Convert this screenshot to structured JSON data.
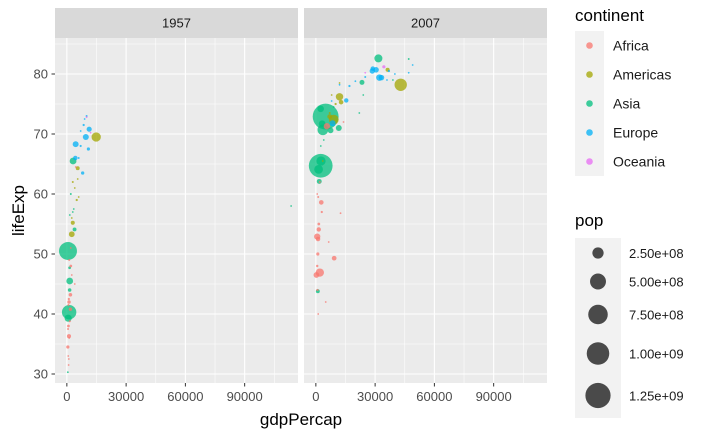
{
  "chart_data": {
    "type": "scatter",
    "facets": [
      "1957",
      "2007"
    ],
    "xlabel": "gdpPercap",
    "ylabel": "lifeExp",
    "xlim": [
      -6000,
      117000
    ],
    "ylim": [
      28.5,
      86
    ],
    "xticks": [
      0,
      30000,
      60000,
      90000
    ],
    "xtick_labels": [
      "0",
      "30000",
      "60000",
      "90000"
    ],
    "yticks": [
      30,
      40,
      50,
      60,
      70,
      80
    ],
    "ytick_labels": [
      "30",
      "40",
      "50",
      "60",
      "70",
      "80"
    ],
    "grid": true,
    "colors": {
      "Africa": "#F8766D",
      "Americas": "#A3A500",
      "Asia": "#00BF7D",
      "Europe": "#00B0F6",
      "Oceania": "#E76BF3",
      "panel_bg": "#EBEBEB",
      "strip_bg": "#D9D9D9",
      "legend_key_bg": "#F2F2F2",
      "size_key_fill": "#404040"
    },
    "legend": {
      "placement": "right",
      "color_title": "continent",
      "continents": [
        "Africa",
        "Americas",
        "Asia",
        "Europe",
        "Oceania"
      ],
      "size_title": "pop",
      "size_values": [
        250000000,
        500000000,
        750000000,
        1000000000,
        1250000000
      ],
      "size_labels": [
        "2.50e+08",
        "5.00e+08",
        "7.50e+08",
        "1.00e+09",
        "1.25e+09"
      ]
    },
    "series": [
      {
        "facet": "1957",
        "points": [
          {
            "x": 576,
            "y": 50.5,
            "pop": 637000000,
            "continent": "Asia"
          },
          {
            "x": 1150,
            "y": 40.3,
            "pop": 409000000,
            "continent": "Asia"
          },
          {
            "x": 14847,
            "y": 69.5,
            "pop": 171900000,
            "continent": "Americas"
          },
          {
            "x": 3140,
            "y": 65.5,
            "pop": 91600000,
            "continent": "Asia"
          },
          {
            "x": 661,
            "y": 39.3,
            "pop": 100000000,
            "continent": "Asia"
          },
          {
            "x": 1437,
            "y": 45.5,
            "pop": 90000000,
            "continent": "Asia"
          },
          {
            "x": 4460,
            "y": 68.3,
            "pop": 70000000,
            "continent": "Europe"
          },
          {
            "x": 9600,
            "y": 69.5,
            "pop": 71000000,
            "continent": "Europe"
          },
          {
            "x": 2487,
            "y": 53.3,
            "pop": 65000000,
            "continent": "Americas"
          },
          {
            "x": 1070,
            "y": 36.3,
            "pop": 33000000,
            "continent": "Africa"
          },
          {
            "x": 3000,
            "y": 55.2,
            "pop": 32000000,
            "continent": "Americas"
          },
          {
            "x": 1800,
            "y": 43.2,
            "pop": 25000000,
            "continent": "Africa"
          },
          {
            "x": 3900,
            "y": 54.1,
            "pop": 30000000,
            "continent": "Asia"
          },
          {
            "x": 1400,
            "y": 44.0,
            "pop": 25000000,
            "continent": "Asia"
          },
          {
            "x": 8000,
            "y": 63.5,
            "pop": 22000000,
            "continent": "Europe"
          },
          {
            "x": 4300,
            "y": 66.0,
            "pop": 40000000,
            "continent": "Europe"
          },
          {
            "x": 5500,
            "y": 64.3,
            "pop": 30000000,
            "continent": "Americas"
          },
          {
            "x": 11300,
            "y": 70.8,
            "pop": 51400000,
            "continent": "Europe"
          },
          {
            "x": 10900,
            "y": 67.5,
            "pop": 20000000,
            "continent": "Europe"
          },
          {
            "x": 1100,
            "y": 42.0,
            "pop": 24000000,
            "continent": "Africa"
          },
          {
            "x": 1800,
            "y": 40.8,
            "pop": 22000000,
            "continent": "Africa"
          },
          {
            "x": 500,
            "y": 34.5,
            "pop": 20000000,
            "continent": "Africa"
          },
          {
            "x": 800,
            "y": 38.0,
            "pop": 15000000,
            "continent": "Africa"
          },
          {
            "x": 1400,
            "y": 47.7,
            "pop": 15000000,
            "continent": "Asia"
          },
          {
            "x": 2000,
            "y": 48.0,
            "pop": 15000000,
            "continent": "Africa"
          },
          {
            "x": 5000,
            "y": 59.0,
            "pop": 10000000,
            "continent": "Americas"
          },
          {
            "x": 8500,
            "y": 71.5,
            "pop": 10000000,
            "continent": "Europe"
          },
          {
            "x": 10000,
            "y": 73.0,
            "pop": 8000000,
            "continent": "Europe"
          },
          {
            "x": 7000,
            "y": 68.0,
            "pop": 9000000,
            "continent": "Europe"
          },
          {
            "x": 6000,
            "y": 66.0,
            "pop": 7000000,
            "continent": "Europe"
          },
          {
            "x": 3000,
            "y": 62.0,
            "pop": 8000000,
            "continent": "Americas"
          },
          {
            "x": 2000,
            "y": 60.0,
            "pop": 8000000,
            "continent": "Asia"
          },
          {
            "x": 1000,
            "y": 42.5,
            "pop": 10000000,
            "continent": "Africa"
          },
          {
            "x": 800,
            "y": 41.5,
            "pop": 8000000,
            "continent": "Africa"
          },
          {
            "x": 1500,
            "y": 38.8,
            "pop": 8000000,
            "continent": "Africa"
          },
          {
            "x": 600,
            "y": 37.5,
            "pop": 8000000,
            "continent": "Africa"
          },
          {
            "x": 1200,
            "y": 49.0,
            "pop": 8000000,
            "continent": "Africa"
          },
          {
            "x": 2500,
            "y": 46.5,
            "pop": 6000000,
            "continent": "Africa"
          },
          {
            "x": 700,
            "y": 33.0,
            "pop": 3000000,
            "continent": "Africa"
          },
          {
            "x": 900,
            "y": 31.5,
            "pop": 3000000,
            "continent": "Africa"
          },
          {
            "x": 500,
            "y": 30.3,
            "pop": 2500000,
            "continent": "Asia"
          },
          {
            "x": 1200,
            "y": 36.0,
            "pop": 3000000,
            "continent": "Africa"
          },
          {
            "x": 4000,
            "y": 61.0,
            "pop": 4000000,
            "continent": "Americas"
          },
          {
            "x": 9000,
            "y": 72.5,
            "pop": 4000000,
            "continent": "Europe"
          },
          {
            "x": 10000,
            "y": 72.8,
            "pop": 5000000,
            "continent": "Oceania"
          },
          {
            "x": 12000,
            "y": 70.2,
            "pop": 2000000,
            "continent": "Oceania"
          },
          {
            "x": 6000,
            "y": 59.5,
            "pop": 3000000,
            "continent": "Americas"
          },
          {
            "x": 3500,
            "y": 57.5,
            "pop": 2000000,
            "continent": "Asia"
          },
          {
            "x": 2500,
            "y": 56.0,
            "pop": 3000000,
            "continent": "Americas"
          },
          {
            "x": 4500,
            "y": 64.5,
            "pop": 3000000,
            "continent": "Africa"
          },
          {
            "x": 1500,
            "y": 56.5,
            "pop": 2000000,
            "continent": "Asia"
          },
          {
            "x": 5500,
            "y": 62.5,
            "pop": 2000000,
            "continent": "Americas"
          },
          {
            "x": 113523,
            "y": 58.0,
            "pop": 212800,
            "continent": "Asia"
          },
          {
            "x": 2000,
            "y": 51.0,
            "pop": 2000000,
            "continent": "Africa"
          },
          {
            "x": 1000,
            "y": 32.5,
            "pop": 1000000,
            "continent": "Africa"
          },
          {
            "x": 3000,
            "y": 57.0,
            "pop": 1000000,
            "continent": "Asia"
          },
          {
            "x": 7000,
            "y": 70.5,
            "pop": 1000000,
            "continent": "Europe"
          },
          {
            "x": 4000,
            "y": 45.0,
            "pop": 1000000,
            "continent": "Africa"
          }
        ]
      },
      {
        "facet": "2007",
        "points": [
          {
            "x": 4959,
            "y": 72.9,
            "pop": 1318700000,
            "continent": "Asia"
          },
          {
            "x": 2452,
            "y": 64.7,
            "pop": 1110400000,
            "continent": "Asia"
          },
          {
            "x": 42951,
            "y": 78.2,
            "pop": 301100000,
            "continent": "Americas"
          },
          {
            "x": 3541,
            "y": 70.7,
            "pop": 223500000,
            "continent": "Asia"
          },
          {
            "x": 9066,
            "y": 72.4,
            "pop": 190000000,
            "continent": "Americas"
          },
          {
            "x": 2606,
            "y": 65.5,
            "pop": 169300000,
            "continent": "Asia"
          },
          {
            "x": 1391,
            "y": 64.1,
            "pop": 150400000,
            "continent": "Asia"
          },
          {
            "x": 2014,
            "y": 46.9,
            "pop": 135000000,
            "continent": "Africa"
          },
          {
            "x": 31656,
            "y": 82.6,
            "pop": 127500000,
            "continent": "Asia"
          },
          {
            "x": 11978,
            "y": 76.2,
            "pop": 108700000,
            "continent": "Americas"
          },
          {
            "x": 3190,
            "y": 71.7,
            "pop": 91000000,
            "continent": "Asia"
          },
          {
            "x": 2442,
            "y": 74.2,
            "pop": 85300000,
            "continent": "Asia"
          },
          {
            "x": 32170,
            "y": 79.4,
            "pop": 82400000,
            "continent": "Europe"
          },
          {
            "x": 690,
            "y": 52.9,
            "pop": 76500000,
            "continent": "Africa"
          },
          {
            "x": 5581,
            "y": 71.3,
            "pop": 80300000,
            "continent": "Africa"
          },
          {
            "x": 8458,
            "y": 71.8,
            "pop": 71200000,
            "continent": "Europe"
          },
          {
            "x": 11606,
            "y": 71.0,
            "pop": 69500000,
            "continent": "Asia"
          },
          {
            "x": 7458,
            "y": 70.6,
            "pop": 65100000,
            "continent": "Asia"
          },
          {
            "x": 30470,
            "y": 80.7,
            "pop": 61100000,
            "continent": "Europe"
          },
          {
            "x": 33203,
            "y": 79.4,
            "pop": 60800000,
            "continent": "Europe"
          },
          {
            "x": 28570,
            "y": 80.5,
            "pop": 58100000,
            "continent": "Europe"
          },
          {
            "x": 277,
            "y": 46.5,
            "pop": 64600000,
            "continent": "Africa"
          },
          {
            "x": 9270,
            "y": 49.3,
            "pop": 44000000,
            "continent": "Africa"
          },
          {
            "x": 1714,
            "y": 62.1,
            "pop": 47800000,
            "continent": "Asia"
          },
          {
            "x": 23348,
            "y": 78.6,
            "pop": 49000000,
            "continent": "Asia"
          },
          {
            "x": 7007,
            "y": 72.9,
            "pop": 44200000,
            "continent": "Americas"
          },
          {
            "x": 28821,
            "y": 80.9,
            "pop": 40400000,
            "continent": "Europe"
          },
          {
            "x": 12779,
            "y": 75.3,
            "pop": 40300000,
            "continent": "Americas"
          },
          {
            "x": 1463,
            "y": 54.1,
            "pop": 38100000,
            "continent": "Africa"
          },
          {
            "x": 1107,
            "y": 52.5,
            "pop": 39000000,
            "continent": "Africa"
          },
          {
            "x": 2749,
            "y": 58.6,
            "pop": 42300000,
            "continent": "Africa"
          },
          {
            "x": 36319,
            "y": 80.7,
            "pop": 33400000,
            "continent": "Americas"
          },
          {
            "x": 34435,
            "y": 81.2,
            "pop": 20400000,
            "continent": "Oceania"
          },
          {
            "x": 15390,
            "y": 75.6,
            "pop": 38500000,
            "continent": "Europe"
          },
          {
            "x": 1000,
            "y": 50.0,
            "pop": 20000000,
            "continent": "Africa"
          },
          {
            "x": 1500,
            "y": 55.0,
            "pop": 15000000,
            "continent": "Africa"
          },
          {
            "x": 700,
            "y": 48.0,
            "pop": 12000000,
            "continent": "Africa"
          },
          {
            "x": 3000,
            "y": 57.0,
            "pop": 10000000,
            "continent": "Africa"
          },
          {
            "x": 800,
            "y": 44.0,
            "pop": 10000000,
            "continent": "Africa"
          },
          {
            "x": 1200,
            "y": 59.5,
            "pop": 8000000,
            "continent": "Africa"
          },
          {
            "x": 5000,
            "y": 42.0,
            "pop": 5000000,
            "continent": "Africa"
          },
          {
            "x": 2000,
            "y": 62.0,
            "pop": 8000000,
            "continent": "Africa"
          },
          {
            "x": 700,
            "y": 60.0,
            "pop": 6000000,
            "continent": "Africa"
          },
          {
            "x": 1200,
            "y": 40.0,
            "pop": 5000000,
            "continent": "Africa"
          },
          {
            "x": 14000,
            "y": 72.0,
            "pop": 5000000,
            "continent": "Africa"
          },
          {
            "x": 12500,
            "y": 56.8,
            "pop": 1500000,
            "continent": "Africa"
          },
          {
            "x": 6500,
            "y": 52.0,
            "pop": 1500000,
            "continent": "Africa"
          },
          {
            "x": 3500,
            "y": 65.5,
            "pop": 6000000,
            "continent": "Americas"
          },
          {
            "x": 10000,
            "y": 75.0,
            "pop": 10000000,
            "continent": "Americas"
          },
          {
            "x": 7000,
            "y": 73.5,
            "pop": 8000000,
            "continent": "Americas"
          },
          {
            "x": 8000,
            "y": 76.5,
            "pop": 6000000,
            "continent": "Americas"
          },
          {
            "x": 12000,
            "y": 78.5,
            "pop": 4000000,
            "continent": "Americas"
          },
          {
            "x": 20000,
            "y": 78.8,
            "pop": 5000000,
            "continent": "Europe"
          },
          {
            "x": 25000,
            "y": 79.5,
            "pop": 8000000,
            "continent": "Europe"
          },
          {
            "x": 37000,
            "y": 80.5,
            "pop": 10000000,
            "continent": "Europe"
          },
          {
            "x": 36000,
            "y": 79.0,
            "pop": 5000000,
            "continent": "Europe"
          },
          {
            "x": 40000,
            "y": 80.0,
            "pop": 5000000,
            "continent": "Europe"
          },
          {
            "x": 47000,
            "y": 80.2,
            "pop": 4500000,
            "continent": "Europe"
          },
          {
            "x": 49000,
            "y": 81.5,
            "pop": 1000000,
            "continent": "Europe"
          },
          {
            "x": 25000,
            "y": 80.2,
            "pop": 4100000,
            "continent": "Oceania"
          },
          {
            "x": 47000,
            "y": 82.5,
            "pop": 6900000,
            "continent": "Asia"
          },
          {
            "x": 39000,
            "y": 79.0,
            "pop": 2000000,
            "continent": "Asia"
          },
          {
            "x": 22000,
            "y": 73.5,
            "pop": 3000000,
            "continent": "Asia"
          },
          {
            "x": 9000,
            "y": 74.5,
            "pop": 5000000,
            "continent": "Asia"
          },
          {
            "x": 2500,
            "y": 68.0,
            "pop": 5000000,
            "continent": "Asia"
          },
          {
            "x": 4000,
            "y": 69.0,
            "pop": 5000000,
            "continent": "Asia"
          },
          {
            "x": 24000,
            "y": 76.5,
            "pop": 3000000,
            "continent": "Asia"
          },
          {
            "x": 1000,
            "y": 43.8,
            "pop": 30000000,
            "continent": "Asia"
          },
          {
            "x": 12000,
            "y": 78.2,
            "pop": 3000000,
            "continent": "Europe"
          },
          {
            "x": 17000,
            "y": 78.0,
            "pop": 10000000,
            "continent": "Europe"
          },
          {
            "x": 8000,
            "y": 75.5,
            "pop": 5000000,
            "continent": "Europe"
          }
        ]
      }
    ]
  }
}
